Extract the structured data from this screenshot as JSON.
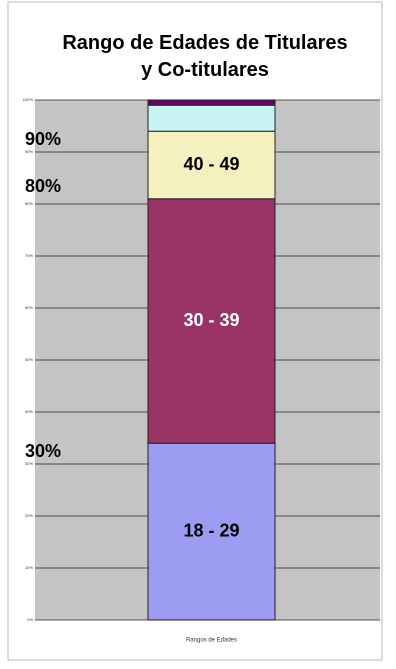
{
  "chart_data": {
    "type": "stacked_bar",
    "title": "Rango de Edades de Titulares y Co-titulares",
    "categories": [
      "Rangos de Edades"
    ],
    "series": [
      {
        "name": "18 - 29",
        "color": "#9c9cf2",
        "values": [
          34
        ]
      },
      {
        "name": "30 - 39",
        "color": "#993366",
        "values": [
          47
        ]
      },
      {
        "name": "40 - 49",
        "color": "#f5f0c0",
        "values": [
          13
        ]
      },
      {
        "color": "#c8f4f4",
        "values": [
          5
        ]
      },
      {
        "color": "#660066",
        "values": [
          1
        ]
      }
    ],
    "ylim": [
      0,
      100
    ],
    "yticks": [
      {
        "value": 0,
        "label": "0%"
      },
      {
        "value": 10,
        "label": "10%"
      },
      {
        "value": 20,
        "label": "20%"
      },
      {
        "value": 30,
        "label": "30%"
      },
      {
        "value": 40,
        "label": "40%"
      },
      {
        "value": 50,
        "label": "50%"
      },
      {
        "value": 60,
        "label": "60%"
      },
      {
        "value": 70,
        "label": "70%"
      },
      {
        "value": 80,
        "label": "80%"
      },
      {
        "value": 90,
        "label": "90%"
      },
      {
        "value": 100,
        "label": "100%"
      }
    ],
    "grid": true,
    "annotations": [
      "90%",
      "80%",
      "30%"
    ]
  }
}
